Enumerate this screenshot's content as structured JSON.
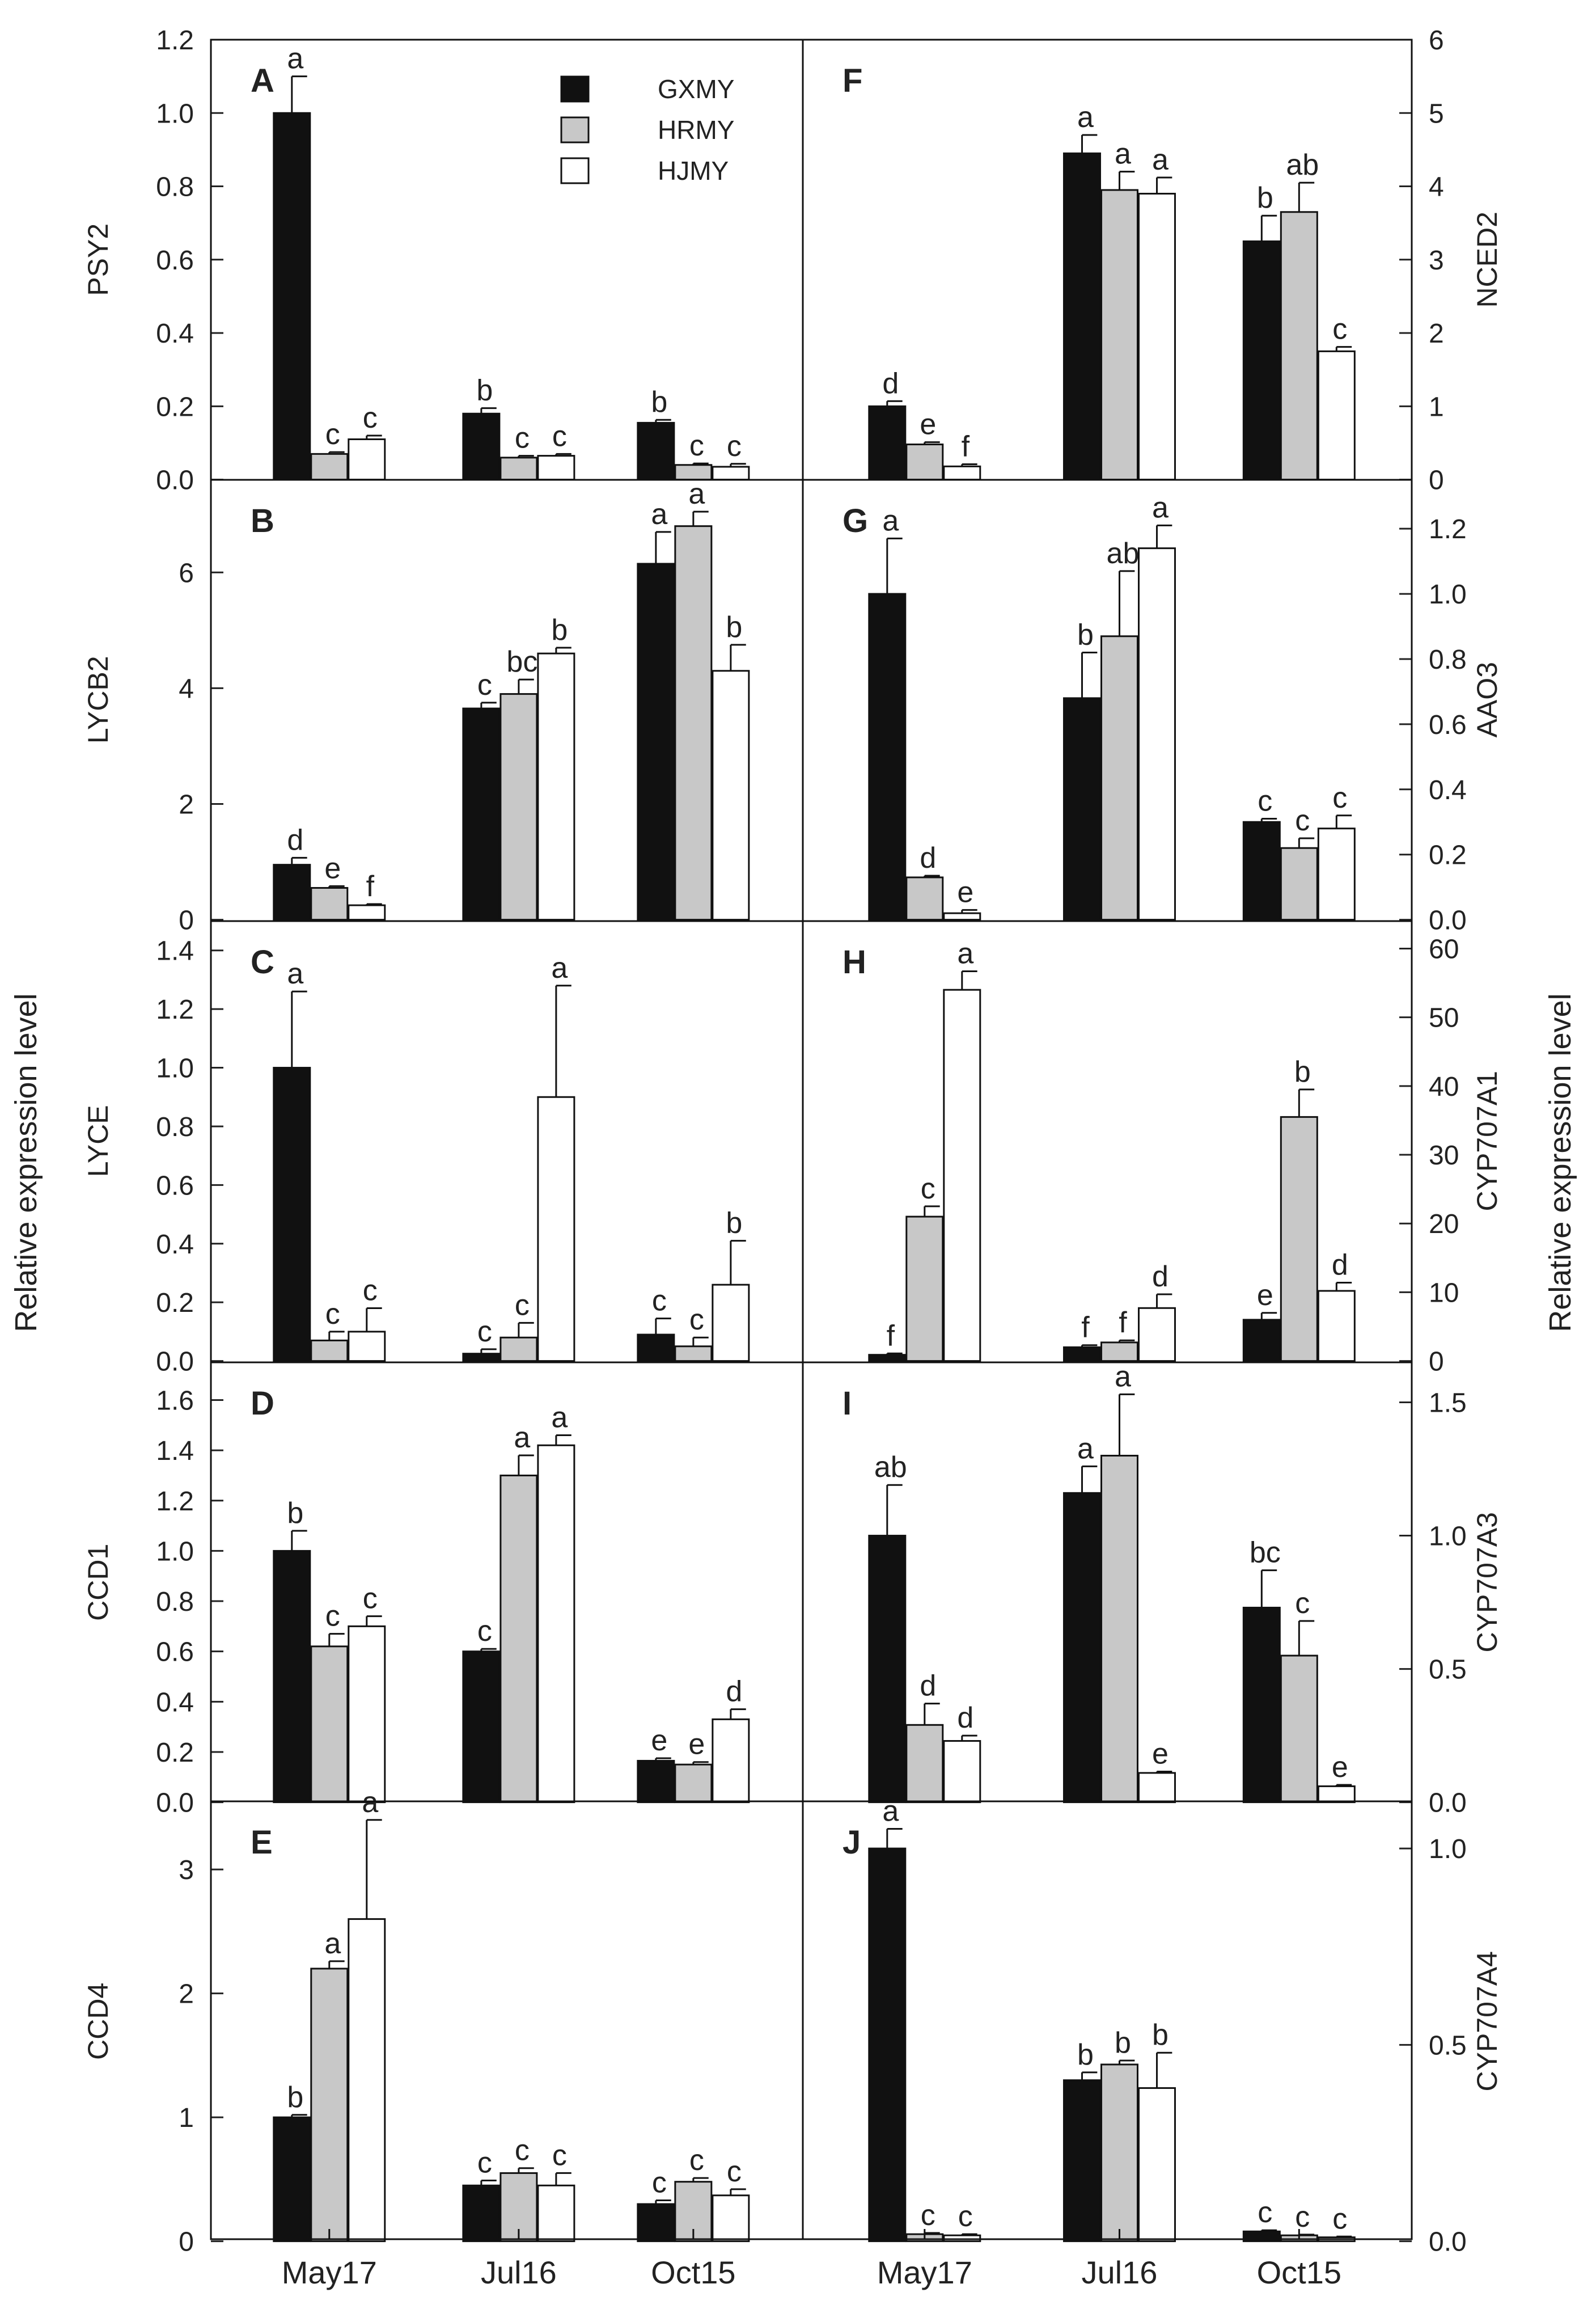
{
  "figure": {
    "left_axis_title": "Relative expression level",
    "right_axis_title": "Relative expression level",
    "categories": [
      "May17",
      "Jul16",
      "Oct15"
    ],
    "legend": [
      {
        "name": "GXMY",
        "color": "#111111"
      },
      {
        "name": "HRMY",
        "color": "#c8c8c8"
      },
      {
        "name": "HJMY",
        "color": "#ffffff"
      }
    ]
  },
  "chart_data": [
    {
      "panel": "A",
      "type": "bar",
      "gene": "PSY2",
      "axis_side": "left",
      "ylim": [
        0,
        1.2
      ],
      "ticks": [
        "0.0",
        "0.2",
        "0.4",
        "0.6",
        "0.8",
        "1.0",
        "1.2"
      ],
      "categories": [
        "May17",
        "Jul16",
        "Oct15"
      ],
      "legend": "top-right",
      "series": [
        {
          "name": "GXMY",
          "values": [
            1.0,
            0.18,
            0.155
          ],
          "errors": [
            0.1,
            0.015,
            0.008
          ],
          "letters": [
            "a",
            "b",
            "b"
          ]
        },
        {
          "name": "HRMY",
          "values": [
            0.07,
            0.06,
            0.04
          ],
          "errors": [
            0.005,
            0.005,
            0.004
          ],
          "letters": [
            "c",
            "c",
            "c"
          ]
        },
        {
          "name": "HJMY",
          "values": [
            0.11,
            0.065,
            0.035
          ],
          "errors": [
            0.01,
            0.005,
            0.008
          ],
          "letters": [
            "c",
            "c",
            "c"
          ]
        }
      ]
    },
    {
      "panel": "B",
      "type": "bar",
      "gene": "LYCB2",
      "axis_side": "left",
      "ylim": [
        0,
        7.6
      ],
      "ticks": [
        "0",
        "2",
        "4",
        "6"
      ],
      "categories": [
        "May17",
        "Jul16",
        "Oct15"
      ],
      "series": [
        {
          "name": "GXMY",
          "values": [
            0.95,
            3.65,
            6.15
          ],
          "errors": [
            0.12,
            0.1,
            0.55
          ],
          "letters": [
            "d",
            "c",
            "a"
          ]
        },
        {
          "name": "HRMY",
          "values": [
            0.55,
            3.9,
            6.8
          ],
          "errors": [
            0.03,
            0.25,
            0.25
          ],
          "letters": [
            "e",
            "bc",
            "a"
          ]
        },
        {
          "name": "HJMY",
          "values": [
            0.25,
            4.6,
            4.3
          ],
          "errors": [
            0.02,
            0.1,
            0.45
          ],
          "letters": [
            "f",
            "b",
            "b"
          ]
        }
      ]
    },
    {
      "panel": "C",
      "type": "bar",
      "gene": "LYCE",
      "axis_side": "left",
      "ylim": [
        0,
        1.5
      ],
      "ticks": [
        "0.0",
        "0.2",
        "0.4",
        "0.6",
        "0.8",
        "1.0",
        "1.2",
        "1.4"
      ],
      "categories": [
        "May17",
        "Jul16",
        "Oct15"
      ],
      "series": [
        {
          "name": "GXMY",
          "values": [
            1.0,
            0.025,
            0.09
          ],
          "errors": [
            0.26,
            0.015,
            0.055
          ],
          "letters": [
            "a",
            "c",
            "c"
          ]
        },
        {
          "name": "HRMY",
          "values": [
            0.07,
            0.08,
            0.05
          ],
          "errors": [
            0.03,
            0.05,
            0.03
          ],
          "letters": [
            "c",
            "c",
            "c"
          ]
        },
        {
          "name": "HJMY",
          "values": [
            0.1,
            0.9,
            0.26
          ],
          "errors": [
            0.08,
            0.38,
            0.15
          ],
          "letters": [
            "c",
            "a",
            "b"
          ]
        }
      ]
    },
    {
      "panel": "D",
      "type": "bar",
      "gene": "CCD1",
      "axis_side": "left",
      "ylim": [
        0,
        1.75
      ],
      "ticks": [
        "0.0",
        "0.2",
        "0.4",
        "0.6",
        "0.8",
        "1.0",
        "1.2",
        "1.4",
        "1.6"
      ],
      "categories": [
        "May17",
        "Jul16",
        "Oct15"
      ],
      "series": [
        {
          "name": "GXMY",
          "values": [
            1.0,
            0.6,
            0.165
          ],
          "errors": [
            0.08,
            0.01,
            0.01
          ],
          "letters": [
            "b",
            "c",
            "e"
          ]
        },
        {
          "name": "HRMY",
          "values": [
            0.62,
            1.3,
            0.15
          ],
          "errors": [
            0.05,
            0.08,
            0.01
          ],
          "letters": [
            "c",
            "a",
            "e"
          ]
        },
        {
          "name": "HJMY",
          "values": [
            0.7,
            1.42,
            0.33
          ],
          "errors": [
            0.04,
            0.04,
            0.04
          ],
          "letters": [
            "c",
            "a",
            "d"
          ]
        }
      ]
    },
    {
      "panel": "E",
      "type": "bar",
      "gene": "CCD4",
      "axis_side": "left",
      "ylim": [
        0,
        3.55
      ],
      "ticks": [
        "0",
        "1",
        "2",
        "3"
      ],
      "categories": [
        "May17",
        "Jul16",
        "Oct15"
      ],
      "series": [
        {
          "name": "GXMY",
          "values": [
            1.0,
            0.45,
            0.3
          ],
          "errors": [
            0.02,
            0.04,
            0.03
          ],
          "letters": [
            "b",
            "c",
            "c"
          ]
        },
        {
          "name": "HRMY",
          "values": [
            2.2,
            0.55,
            0.48
          ],
          "errors": [
            0.06,
            0.04,
            0.03
          ],
          "letters": [
            "a",
            "c",
            "c"
          ]
        },
        {
          "name": "HJMY",
          "values": [
            2.6,
            0.45,
            0.37
          ],
          "errors": [
            0.8,
            0.1,
            0.05
          ],
          "letters": [
            "a",
            "c",
            "c"
          ]
        }
      ]
    },
    {
      "panel": "F",
      "type": "bar",
      "gene": "NCED2",
      "axis_side": "right",
      "ylim": [
        0,
        6
      ],
      "ticks": [
        "0",
        "1",
        "2",
        "3",
        "4",
        "5",
        "6"
      ],
      "categories": [
        "May17",
        "Jul16",
        "Oct15"
      ],
      "series": [
        {
          "name": "GXMY",
          "values": [
            1.0,
            4.45,
            3.25
          ],
          "errors": [
            0.07,
            0.25,
            0.35
          ],
          "letters": [
            "d",
            "a",
            "b"
          ]
        },
        {
          "name": "HRMY",
          "values": [
            0.48,
            3.95,
            3.65
          ],
          "errors": [
            0.03,
            0.25,
            0.4
          ],
          "letters": [
            "e",
            "a",
            "ab"
          ]
        },
        {
          "name": "HJMY",
          "values": [
            0.18,
            3.9,
            1.75
          ],
          "errors": [
            0.03,
            0.22,
            0.06
          ],
          "letters": [
            "f",
            "a",
            "c"
          ]
        }
      ]
    },
    {
      "panel": "G",
      "type": "bar",
      "gene": "AAO3",
      "axis_side": "right",
      "ylim": [
        0,
        1.35
      ],
      "ticks": [
        "0.0",
        "0.2",
        "0.4",
        "0.6",
        "0.8",
        "1.0",
        "1.2"
      ],
      "categories": [
        "May17",
        "Jul16",
        "Oct15"
      ],
      "series": [
        {
          "name": "GXMY",
          "values": [
            1.0,
            0.68,
            0.3
          ],
          "errors": [
            0.17,
            0.14,
            0.01
          ],
          "letters": [
            "a",
            "b",
            "c"
          ]
        },
        {
          "name": "HRMY",
          "values": [
            0.13,
            0.87,
            0.22
          ],
          "errors": [
            0.005,
            0.2,
            0.03
          ],
          "letters": [
            "d",
            "ab",
            "c"
          ]
        },
        {
          "name": "HJMY",
          "values": [
            0.02,
            1.14,
            0.28
          ],
          "errors": [
            0.01,
            0.07,
            0.04
          ],
          "letters": [
            "e",
            "a",
            "c"
          ]
        }
      ]
    },
    {
      "panel": "H",
      "type": "bar",
      "gene": "CYP707A1",
      "axis_side": "right",
      "ylim": [
        0,
        64
      ],
      "ticks": [
        "0",
        "10",
        "20",
        "30",
        "40",
        "50",
        "60"
      ],
      "categories": [
        "May17",
        "Jul16",
        "Oct15"
      ],
      "series": [
        {
          "name": "GXMY",
          "values": [
            0.9,
            2.0,
            6.0
          ],
          "errors": [
            0.2,
            0.3,
            1.0
          ],
          "letters": [
            "f",
            "f",
            "e"
          ]
        },
        {
          "name": "HRMY",
          "values": [
            21.0,
            2.7,
            35.5
          ],
          "errors": [
            1.5,
            0.3,
            4.0
          ],
          "letters": [
            "c",
            "f",
            "b"
          ]
        },
        {
          "name": "HJMY",
          "values": [
            54.0,
            7.7,
            10.2
          ],
          "errors": [
            2.7,
            2.0,
            1.2
          ],
          "letters": [
            "a",
            "d",
            "d"
          ]
        }
      ]
    },
    {
      "panel": "I",
      "type": "bar",
      "gene": "CYP707A3",
      "axis_side": "right",
      "ylim": [
        0,
        1.65
      ],
      "ticks": [
        "0.0",
        "0.5",
        "1.0",
        "1.5"
      ],
      "categories": [
        "May17",
        "Jul16",
        "Oct15"
      ],
      "series": [
        {
          "name": "GXMY",
          "values": [
            1.0,
            1.16,
            0.73
          ],
          "errors": [
            0.19,
            0.1,
            0.14
          ],
          "letters": [
            "ab",
            "a",
            "bc"
          ]
        },
        {
          "name": "HRMY",
          "values": [
            0.29,
            1.3,
            0.55
          ],
          "errors": [
            0.08,
            0.23,
            0.13
          ],
          "letters": [
            "d",
            "a",
            "c"
          ]
        },
        {
          "name": "HJMY",
          "values": [
            0.23,
            0.11,
            0.06
          ],
          "errors": [
            0.02,
            0.005,
            0.005
          ],
          "letters": [
            "d",
            "e",
            "e"
          ]
        }
      ]
    },
    {
      "panel": "J",
      "type": "bar",
      "gene": "CYP707A4",
      "axis_side": "right",
      "ylim": [
        0,
        1.12
      ],
      "ticks": [
        "0.0",
        "0.5",
        "1.0"
      ],
      "categories": [
        "May17",
        "Jul16",
        "Oct15"
      ],
      "series": [
        {
          "name": "GXMY",
          "values": [
            1.0,
            0.41,
            0.025
          ],
          "errors": [
            0.05,
            0.02,
            0.003
          ],
          "letters": [
            "a",
            "b",
            "c"
          ]
        },
        {
          "name": "HRMY",
          "values": [
            0.018,
            0.45,
            0.015
          ],
          "errors": [
            0.003,
            0.01,
            0.002
          ],
          "letters": [
            "c",
            "b",
            "c"
          ]
        },
        {
          "name": "HJMY",
          "values": [
            0.015,
            0.39,
            0.01
          ],
          "errors": [
            0.003,
            0.09,
            0.002
          ],
          "letters": [
            "c",
            "b",
            "c"
          ]
        }
      ]
    }
  ]
}
